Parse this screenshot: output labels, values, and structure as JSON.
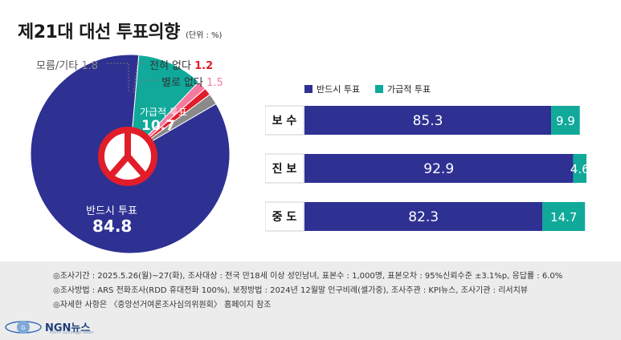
{
  "title": {
    "main": "제21대 대선 투표의향",
    "unit": "(단위 : %)"
  },
  "colors": {
    "navy": "#2e3192",
    "teal": "#10a99a",
    "gray": "#8a8a8a",
    "red": "#e11d2a",
    "pink": "#f47aa0"
  },
  "chart_data": [
    {
      "type": "pie",
      "title": "",
      "slices": [
        {
          "label": "반드시 투표",
          "value": 84.8,
          "color": "#2e3192"
        },
        {
          "label": "가급적 투표",
          "value": 10.7,
          "color": "#10a99a"
        },
        {
          "label": "별로 없다",
          "value": 1.5,
          "color": "#f47aa0"
        },
        {
          "label": "전혀 없다",
          "value": 1.2,
          "color": "#e11d2a"
        },
        {
          "label": "모름/기타",
          "value": 1.8,
          "color": "#8a8a8a"
        }
      ]
    },
    {
      "type": "bar",
      "orientation": "horizontal",
      "stacked": true,
      "categories": [
        "보 수",
        "진 보",
        "중 도"
      ],
      "series": [
        {
          "name": "반드시 투표",
          "values": [
            85.3,
            92.9,
            82.3
          ],
          "color": "#2e3192"
        },
        {
          "name": "가급적 투표",
          "values": [
            9.9,
            4.6,
            14.7
          ],
          "color": "#10a99a"
        }
      ],
      "legend": "top"
    }
  ],
  "footer": {
    "lines": [
      "◎조사기간 : 2025.5.26(월)~27(화), 조사대상 : 전국 만18세 이상 성인남녀, 표본수 : 1,000명, 표본오차 : 95%신뢰수준 ±3.1%p, 응답률 : 6.0%",
      "◎조사방법 : ARS 전화조사(RDD 휴대전화 100%), 보정방법 : 2024년 12월말 인구비례(셀가중), 조사주관 : KPI뉴스, 조사기관 : 리서치뷰",
      "◎자세한 사항은 〈중앙선거여론조사심의위원회〉 홈페이지 참조"
    ]
  },
  "brand": {
    "name": "NGN뉴스",
    "sub": "North Gyeonggi News"
  }
}
